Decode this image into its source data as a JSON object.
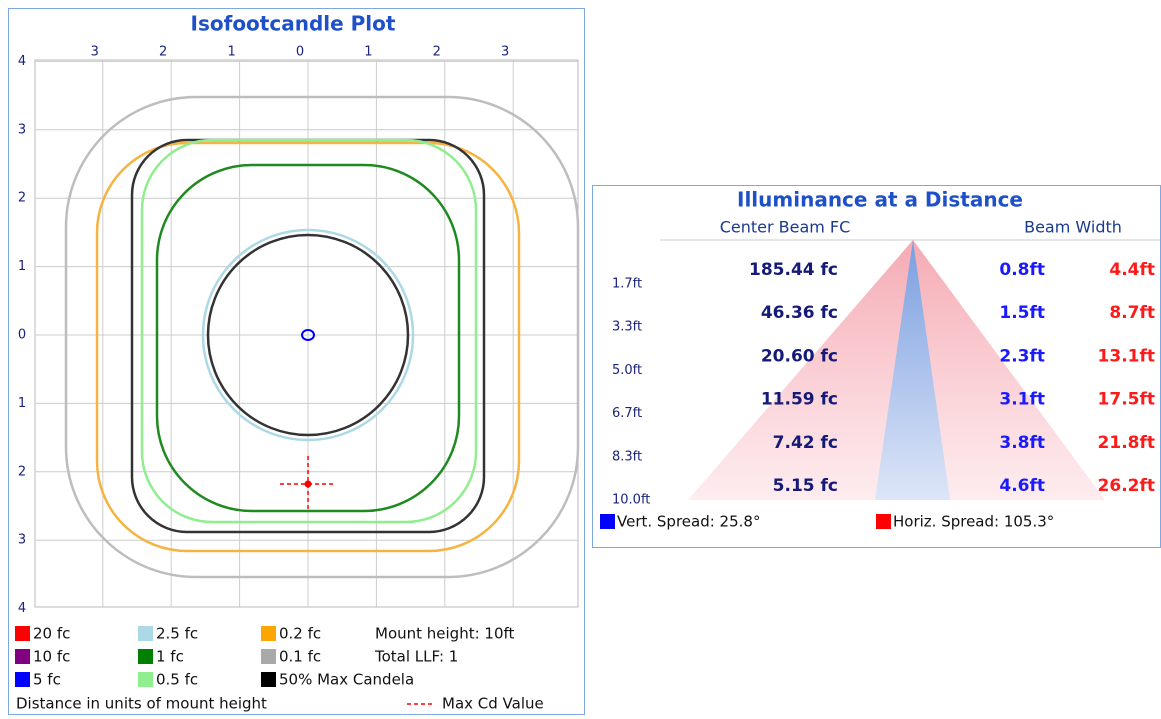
{
  "iso_plot": {
    "title": "Isofootcandle Plot",
    "top_ticks": [
      "3",
      "2",
      "1",
      "0",
      "1",
      "2",
      "3"
    ],
    "left_ticks": [
      "4",
      "3",
      "2",
      "1",
      "0",
      "1",
      "2",
      "3",
      "4"
    ],
    "legend": [
      {
        "label": "20 fc",
        "color": "#ff0000"
      },
      {
        "label": "10 fc",
        "color": "#800080"
      },
      {
        "label": "5 fc",
        "color": "#0000ff"
      },
      {
        "label": "2.5 fc",
        "color": "#add8e6"
      },
      {
        "label": "1 fc",
        "color": "#008000"
      },
      {
        "label": "0.5 fc",
        "color": "#90ee90"
      },
      {
        "label": "0.2 fc",
        "color": "#ffa500"
      },
      {
        "label": "0.1 fc",
        "color": "#a9a9a9"
      },
      {
        "label": "50% Max Candela",
        "color": "#000000"
      }
    ],
    "mount_height": "Mount height: 10ft",
    "total_llf": "Total LLF: 1",
    "footer": "Distance in units of mount height",
    "max_cd": "Max Cd Value"
  },
  "illuminance": {
    "title": "Illuminance at a Distance",
    "headers": [
      "Center Beam FC",
      "Beam Width"
    ],
    "rows": [
      {
        "distance": "1.7ft",
        "fc": "185.44 fc",
        "vert": "0.8ft",
        "horiz": "4.4ft"
      },
      {
        "distance": "3.3ft",
        "fc": "46.36 fc",
        "vert": "1.5ft",
        "horiz": "8.7ft"
      },
      {
        "distance": "5.0ft",
        "fc": "20.60 fc",
        "vert": "2.3ft",
        "horiz": "13.1ft"
      },
      {
        "distance": "6.7ft",
        "fc": "11.59 fc",
        "vert": "3.1ft",
        "horiz": "17.5ft"
      },
      {
        "distance": "8.3ft",
        "fc": "7.42 fc",
        "vert": "3.8ft",
        "horiz": "21.8ft"
      },
      {
        "distance": "10.0ft",
        "fc": "5.15 fc",
        "vert": "4.6ft",
        "horiz": "26.2ft"
      }
    ],
    "vert_spread": "Vert. Spread: 25.8°",
    "horiz_spread": "Horiz. Spread: 105.3°"
  }
}
